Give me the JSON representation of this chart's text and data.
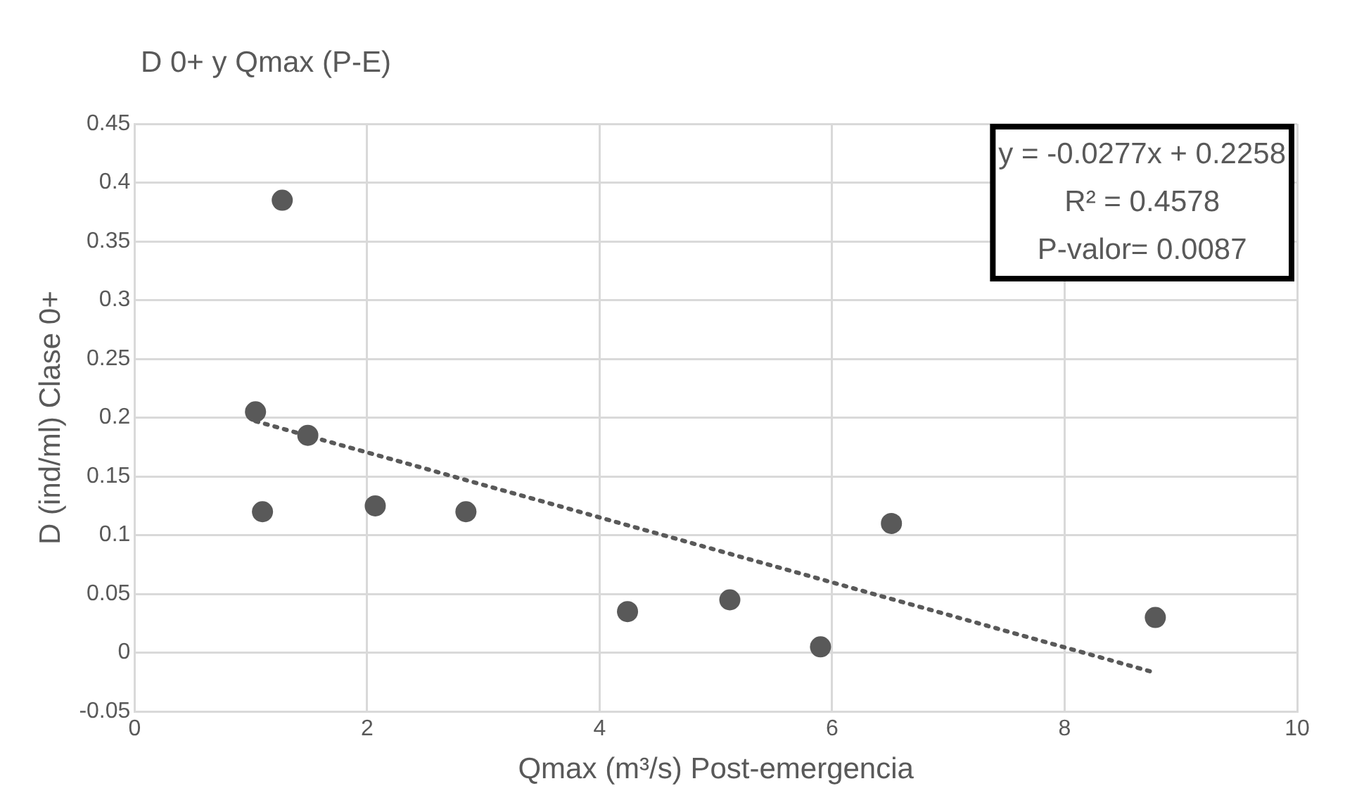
{
  "chart_data": {
    "type": "scatter",
    "title": "D 0+ y Qmax (P-E)",
    "xlabel": "Qmax (m³/s) Post-emergencia",
    "ylabel": "D (ind/ml) Clase 0+",
    "series": [
      {
        "color": "#595959",
        "x": [
          1.27,
          1.04,
          1.49,
          1.1,
          2.07,
          2.85,
          4.24,
          5.12,
          5.9,
          6.51,
          8.78
        ],
        "values": [
          0.385,
          0.205,
          0.185,
          0.12,
          0.125,
          0.12,
          0.035,
          0.045,
          0.005,
          0.11,
          0.03
        ]
      },
      {
        "type": "line",
        "color": "#595959",
        "line_style": "dotted",
        "marker": "none",
        "x": [
          1.04,
          8.78
        ],
        "values": [
          0.197,
          -0.017
        ]
      }
    ],
    "xlim": [
      0,
      10
    ],
    "xticks": [
      0,
      2,
      4,
      6,
      8,
      10
    ],
    "ylim": [
      -0.05,
      0.45
    ],
    "yticks": [
      -0.05,
      0,
      0.05,
      0.1,
      0.15,
      0.2,
      0.25,
      0.3,
      0.35,
      0.4,
      0.45
    ],
    "grid": true,
    "legend": false,
    "marker": "circle",
    "annotations": [
      "y = -0.0277x + 0.2258",
      "R² = 0.4578",
      "P-valor= 0.0087"
    ]
  }
}
